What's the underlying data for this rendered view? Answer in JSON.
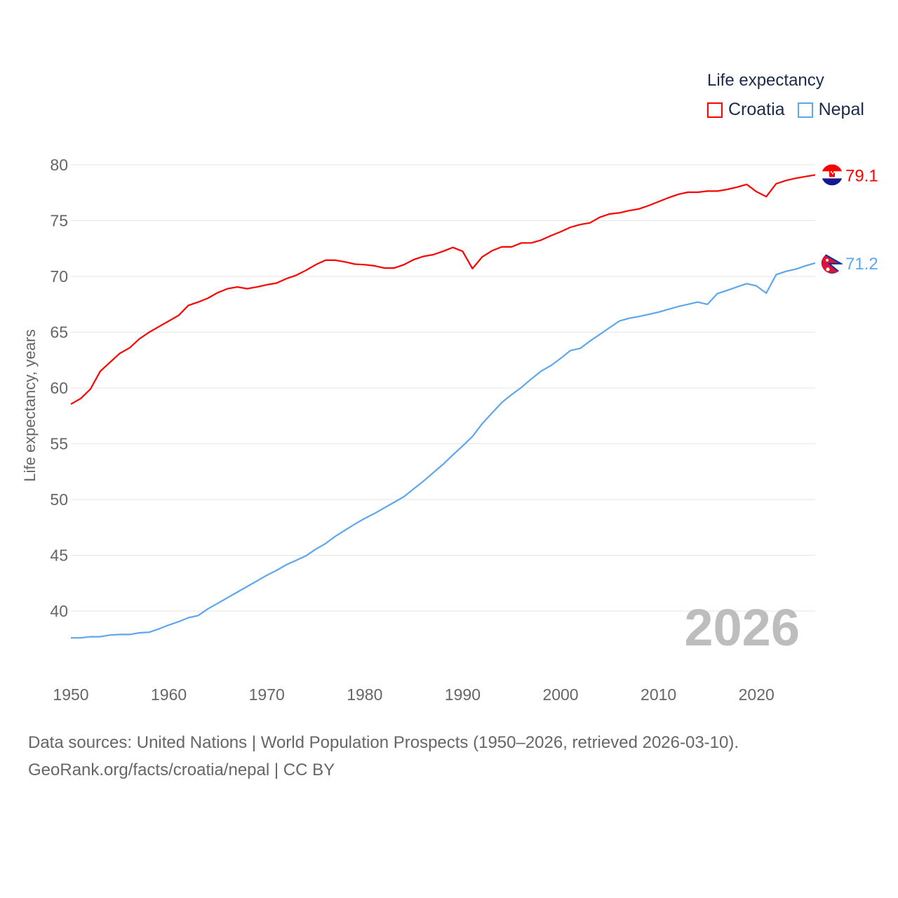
{
  "legend": {
    "title": "Life expectancy"
  },
  "footer": {
    "line1": "Data sources: United Nations | World Population Prospects (1950–2026, retrieved 2026-03-10).",
    "line2": "GeoRank.org/facts/croatia/nepal | CC BY"
  },
  "chart_data": {
    "type": "line",
    "title": "Life expectancy",
    "xlabel": "",
    "ylabel": "Life expectancy, years",
    "xlim": [
      1950,
      2026
    ],
    "ylim": [
      35,
      82
    ],
    "yticks": [
      40,
      45,
      50,
      55,
      60,
      65,
      70,
      75,
      80
    ],
    "xticks": [
      1950,
      1960,
      1970,
      1980,
      1990,
      2000,
      2010,
      2020
    ],
    "grid": true,
    "legend_position": "top-right",
    "year_watermark": "2026",
    "x": [
      1950,
      1951,
      1952,
      1953,
      1954,
      1955,
      1956,
      1957,
      1958,
      1959,
      1960,
      1961,
      1962,
      1963,
      1964,
      1965,
      1966,
      1967,
      1968,
      1969,
      1970,
      1971,
      1972,
      1973,
      1974,
      1975,
      1976,
      1977,
      1978,
      1979,
      1980,
      1981,
      1982,
      1983,
      1984,
      1985,
      1986,
      1987,
      1988,
      1989,
      1990,
      1991,
      1992,
      1993,
      1994,
      1995,
      1996,
      1997,
      1998,
      1999,
      2000,
      2001,
      2002,
      2003,
      2004,
      2005,
      2006,
      2007,
      2008,
      2009,
      2010,
      2011,
      2012,
      2013,
      2014,
      2015,
      2016,
      2017,
      2018,
      2019,
      2020,
      2021,
      2022,
      2023,
      2024,
      2025,
      2026
    ],
    "series": [
      {
        "name": "Croatia",
        "color": "#ff0000",
        "end_label": "79.1",
        "values": [
          58.55,
          59.05,
          59.9,
          61.5,
          62.3,
          63.1,
          63.6,
          64.4,
          65.0,
          65.5,
          66.0,
          66.5,
          67.4,
          67.7,
          68.05,
          68.55,
          68.9,
          69.05,
          68.9,
          69.05,
          69.25,
          69.4,
          69.8,
          70.1,
          70.55,
          71.05,
          71.45,
          71.45,
          71.3,
          71.1,
          71.05,
          70.95,
          70.75,
          70.75,
          71.05,
          71.5,
          71.8,
          71.95,
          72.25,
          72.6,
          72.25,
          70.7,
          71.75,
          72.3,
          72.65,
          72.65,
          73.0,
          73.0,
          73.25,
          73.65,
          74.0,
          74.4,
          74.65,
          74.8,
          75.3,
          75.6,
          75.7,
          75.9,
          76.05,
          76.35,
          76.7,
          77.05,
          77.35,
          77.55,
          77.55,
          77.65,
          77.65,
          77.8,
          78.0,
          78.25,
          77.6,
          77.15,
          78.3,
          78.6,
          78.8,
          78.95,
          79.1
        ]
      },
      {
        "name": "Nepal",
        "color": "#5ea6ee",
        "end_label": "71.2",
        "values": [
          37.6,
          37.6,
          37.7,
          37.7,
          37.85,
          37.9,
          37.9,
          38.05,
          38.1,
          38.4,
          38.75,
          39.05,
          39.4,
          39.6,
          40.2,
          40.7,
          41.2,
          41.7,
          42.2,
          42.7,
          43.2,
          43.65,
          44.15,
          44.55,
          44.95,
          45.55,
          46.05,
          46.7,
          47.25,
          47.8,
          48.3,
          48.75,
          49.25,
          49.75,
          50.25,
          50.95,
          51.65,
          52.4,
          53.15,
          54.0,
          54.8,
          55.65,
          56.8,
          57.75,
          58.7,
          59.4,
          60.05,
          60.8,
          61.5,
          62.0,
          62.65,
          63.35,
          63.55,
          64.2,
          64.8,
          65.4,
          66.0,
          66.25,
          66.4,
          66.6,
          66.8,
          67.05,
          67.3,
          67.5,
          67.7,
          67.5,
          68.45,
          68.75,
          69.05,
          69.35,
          69.15,
          68.5,
          70.15,
          70.45,
          70.65,
          70.95,
          71.2
        ]
      }
    ]
  }
}
